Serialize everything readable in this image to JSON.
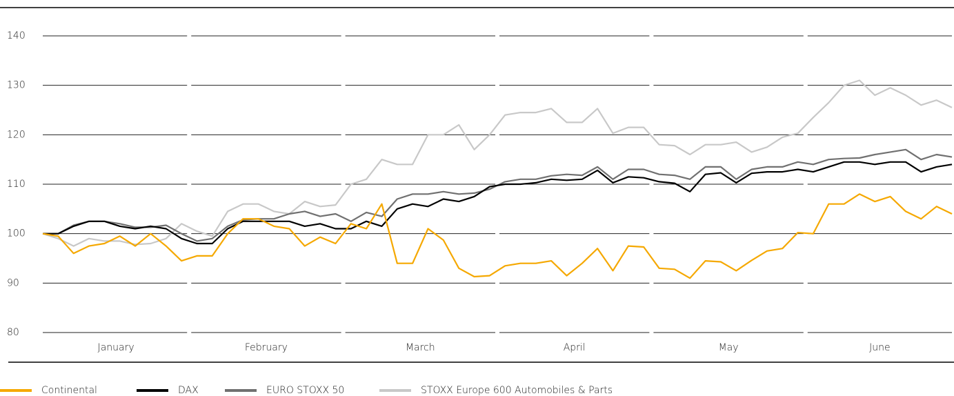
{
  "chart_data": {
    "type": "line",
    "categories": [
      null,
      null,
      null,
      null,
      "January",
      null,
      null,
      null,
      null,
      null,
      null,
      null,
      null,
      null,
      "February",
      null,
      null,
      null,
      null,
      null,
      null,
      null,
      null,
      null,
      "March",
      null,
      null,
      null,
      null,
      null,
      null,
      null,
      null,
      null,
      "April",
      null,
      null,
      null,
      null,
      null,
      null,
      null,
      null,
      null,
      "May",
      null,
      null,
      null,
      null,
      null,
      null,
      null,
      null,
      null,
      "June",
      null,
      null,
      null,
      null,
      null
    ],
    "ylim": [
      80,
      140
    ],
    "yticks": [
      80,
      90,
      100,
      110,
      120,
      130,
      140
    ],
    "grid": true,
    "series": [
      {
        "name": "Continental",
        "color": "#f5a800",
        "values": [
          100,
          99.5,
          96,
          97.5,
          98,
          99.5,
          97.5,
          100,
          97.5,
          94.5,
          95.5,
          95.5,
          100,
          103,
          103,
          101.5,
          101,
          97.5,
          99.3,
          98,
          102,
          101,
          106,
          94,
          94,
          101,
          98.7,
          93,
          91.3,
          91.5,
          93.5,
          94,
          94,
          94.5,
          91.5,
          94,
          97,
          92.5,
          97.5,
          97.3,
          93,
          92.8,
          91,
          94.5,
          94.3,
          92.5,
          94.6,
          96.5,
          97,
          100.2,
          100,
          106,
          106,
          108,
          106.5,
          107.5,
          104.5,
          103,
          105.5,
          104
        ]
      },
      {
        "name": "DAX",
        "color": "#000000",
        "values": [
          100,
          100,
          101.5,
          102.5,
          102.5,
          101.5,
          101,
          101.5,
          101,
          99,
          98,
          98,
          101,
          102.5,
          102.5,
          102.5,
          102.5,
          101.5,
          102,
          101,
          101,
          102.5,
          101.5,
          105,
          106,
          105.5,
          107,
          106.5,
          107.5,
          109.5,
          110,
          110,
          110.3,
          111,
          110.8,
          111,
          112.8,
          110.3,
          111.5,
          111.3,
          110.5,
          110.2,
          108.5,
          112,
          112.3,
          110.3,
          112.2,
          112.5,
          112.5,
          113,
          112.5,
          113.5,
          114.5,
          114.5,
          114,
          114.5,
          114.5,
          112.5,
          113.5,
          114
        ]
      },
      {
        "name": "EURO STOXX 50",
        "color": "#707070",
        "values": [
          100,
          100,
          101.7,
          102.5,
          102.5,
          102,
          101.3,
          101.3,
          101.7,
          100,
          98.5,
          99,
          101.5,
          102.8,
          103,
          103,
          104,
          104.5,
          103.5,
          104,
          102.5,
          104.3,
          103.5,
          107,
          108,
          108,
          108.5,
          108,
          108.2,
          109,
          110.5,
          111,
          111,
          111.7,
          112,
          111.8,
          113.5,
          111,
          113,
          113,
          112,
          111.8,
          111,
          113.5,
          113.5,
          111,
          113,
          113.5,
          113.5,
          114.5,
          114,
          115,
          115.2,
          115.3,
          116,
          116.5,
          117,
          115,
          116,
          115.5
        ]
      },
      {
        "name": "STOXX Europe 600 Automobiles & Parts",
        "color": "#c8c8c8",
        "values": [
          100,
          99,
          97.5,
          99,
          98.5,
          98.5,
          97.8,
          98,
          99,
          102,
          100.5,
          99.5,
          104.5,
          106,
          106,
          104.5,
          104,
          106.5,
          105.5,
          105.8,
          110,
          111,
          115,
          114,
          114,
          120,
          120,
          122,
          117,
          120,
          124,
          124.5,
          124.5,
          125.3,
          122.5,
          122.5,
          125.3,
          120.3,
          121.5,
          121.5,
          118,
          117.8,
          116,
          118,
          118,
          118.5,
          116.5,
          117.5,
          119.5,
          120.3,
          123.5,
          126.5,
          130,
          131,
          128,
          129.5,
          128,
          126,
          127,
          125.5
        ]
      }
    ]
  }
}
